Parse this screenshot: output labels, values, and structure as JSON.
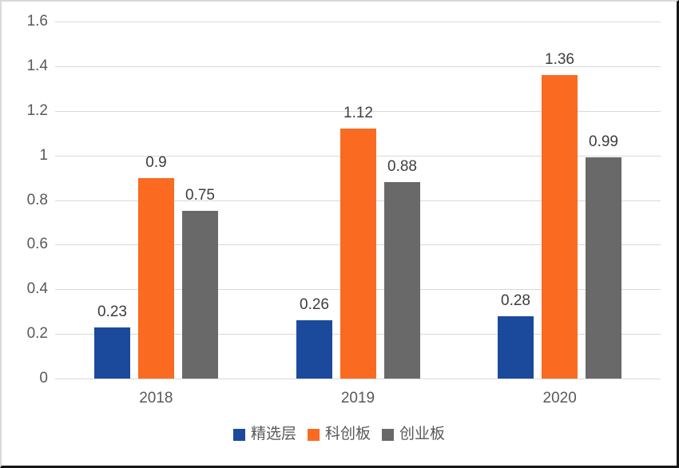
{
  "chart_data": {
    "type": "bar",
    "title": "",
    "xlabel": "",
    "ylabel": "",
    "categories": [
      "2018",
      "2019",
      "2020"
    ],
    "series": [
      {
        "name": "精选层",
        "color": "#1b4a9d",
        "values": [
          0.23,
          0.26,
          0.28
        ],
        "labels": [
          "0.23",
          "0.26",
          "0.28"
        ]
      },
      {
        "name": "科创板",
        "color": "#fa6a21",
        "values": [
          0.9,
          1.12,
          1.36
        ],
        "labels": [
          "0.9",
          "1.12",
          "1.36"
        ]
      },
      {
        "name": "创业板",
        "color": "#696969",
        "values": [
          0.75,
          0.88,
          0.99
        ],
        "labels": [
          "0.75",
          "0.88",
          "0.99"
        ]
      }
    ],
    "ylim": [
      0,
      1.6
    ],
    "ytick_step": 0.2,
    "ytick_labels": [
      "0",
      "0.2",
      "0.4",
      "0.6",
      "0.8",
      "1",
      "1.2",
      "1.4",
      "1.6"
    ],
    "grid": true,
    "data_labels": true,
    "legend_position": "bottom"
  },
  "colors": {
    "gridline": "#d9d9d9",
    "axis_text": "#595959",
    "value_label_text": "#3d3d3d",
    "background": "#ffffff",
    "frame_border_light": "#d9d9d9",
    "frame_border_dark": "#161616"
  }
}
